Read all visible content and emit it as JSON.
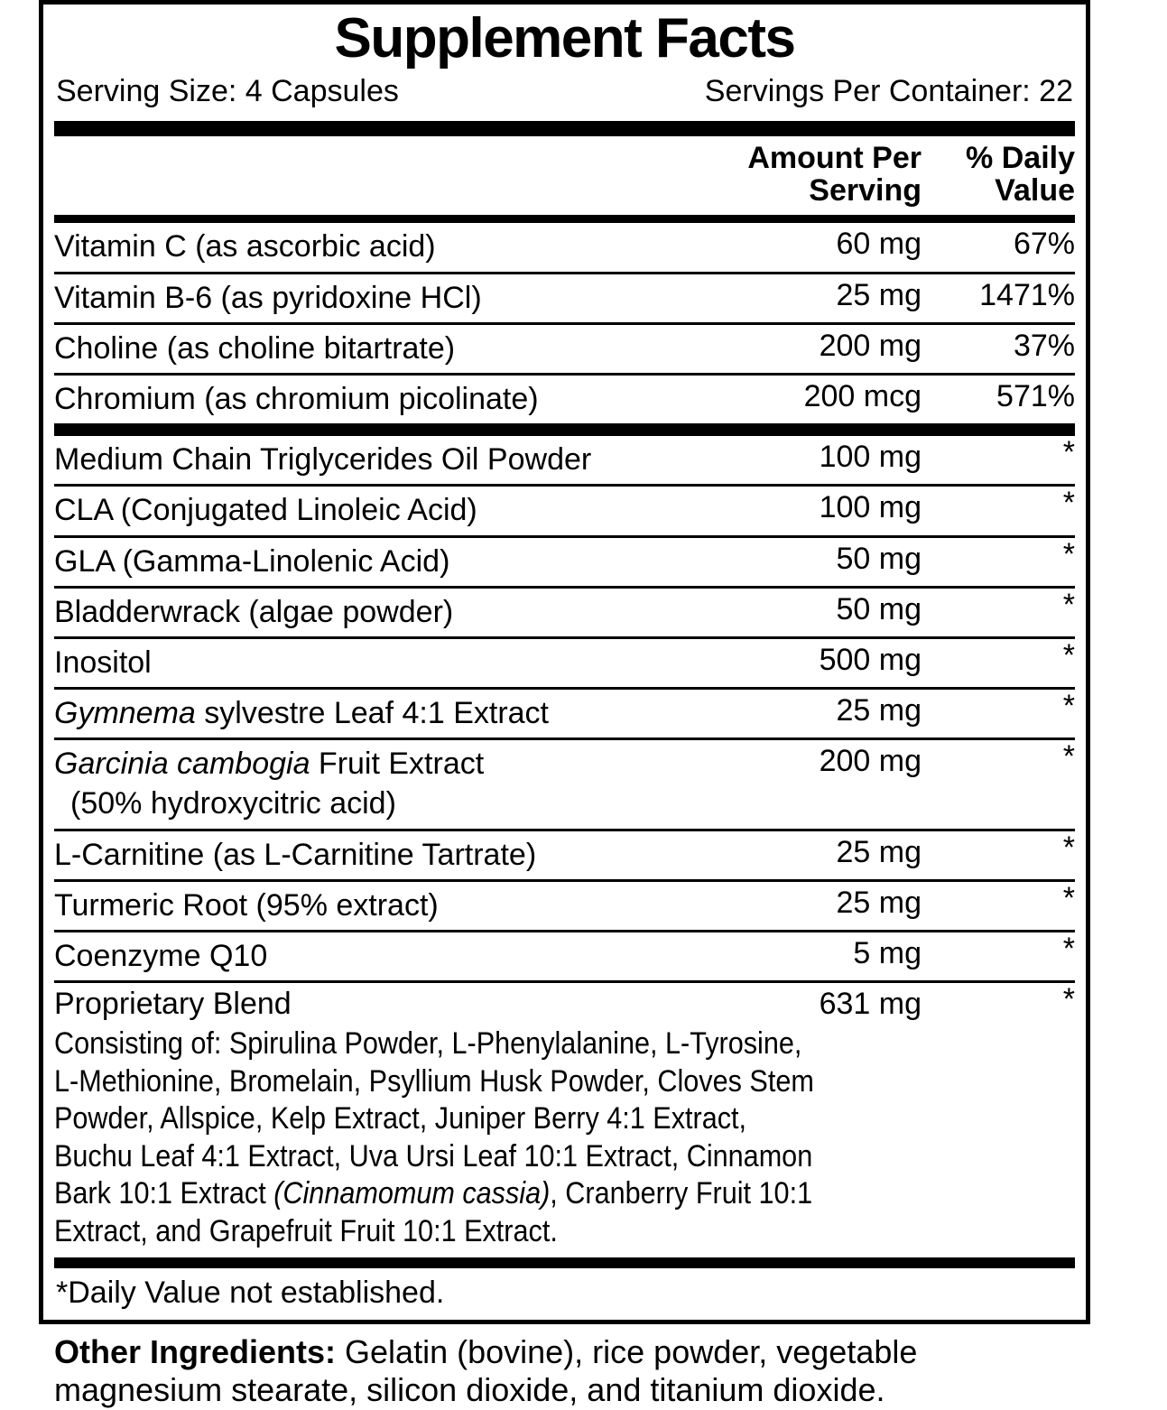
{
  "panel": {
    "title": "Supplement Facts",
    "serving_size": "Serving Size: 4 Capsules",
    "servings_per_container": "Servings Per Container: 22",
    "footnote": "*Daily Value not established."
  },
  "columns": {
    "amount_line1": "Amount Per",
    "amount_line2": "Serving",
    "dv_line1": "% Daily",
    "dv_line2": "Value"
  },
  "table": {
    "sections": [
      {
        "rows": [
          {
            "name_parts": [
              {
                "t": "Vitamin C (as ascorbic acid)"
              }
            ],
            "amount": "60 mg",
            "dv": "67%"
          },
          {
            "name_parts": [
              {
                "t": "Vitamin B-6 (as pyridoxine HCl)"
              }
            ],
            "amount": "25 mg",
            "dv": "1471%"
          },
          {
            "name_parts": [
              {
                "t": "Choline (as choline bitartrate)"
              }
            ],
            "amount": "200 mg",
            "dv": "37%"
          },
          {
            "name_parts": [
              {
                "t": "Chromium (as chromium picolinate)"
              }
            ],
            "amount": "200 mcg",
            "dv": "571%"
          }
        ]
      },
      {
        "rows": [
          {
            "name_parts": [
              {
                "t": "Medium Chain Triglycerides Oil Powder"
              }
            ],
            "amount": "100 mg",
            "dv": "*"
          },
          {
            "name_parts": [
              {
                "t": "CLA (Conjugated Linoleic Acid)"
              }
            ],
            "amount": "100 mg",
            "dv": "*"
          },
          {
            "name_parts": [
              {
                "t": "GLA (Gamma-Linolenic Acid)"
              }
            ],
            "amount": "50 mg",
            "dv": "*"
          },
          {
            "name_parts": [
              {
                "t": "Bladderwrack (algae powder)"
              }
            ],
            "amount": "50 mg",
            "dv": "*"
          },
          {
            "name_parts": [
              {
                "t": "Inositol"
              }
            ],
            "amount": "500 mg",
            "dv": "*"
          },
          {
            "name_parts": [
              {
                "t": "Gymnema",
                "i": true
              },
              {
                "t": " sylvestre Leaf 4:1 Extract"
              }
            ],
            "amount": "25 mg",
            "dv": "*"
          },
          {
            "name_parts": [
              {
                "t": "Garcinia cambogia",
                "i": true
              },
              {
                "t": " Fruit Extract"
              }
            ],
            "name_line2": "(50% hydroxycitric acid)",
            "amount": "200 mg",
            "dv": "*"
          },
          {
            "name_parts": [
              {
                "t": "L-Carnitine (as L-Carnitine Tartrate)"
              }
            ],
            "amount": "25 mg",
            "dv": "*"
          },
          {
            "name_parts": [
              {
                "t": "Turmeric Root (95% extract)"
              }
            ],
            "amount": "25 mg",
            "dv": "*"
          },
          {
            "name_parts": [
              {
                "t": "Coenzyme Q10"
              }
            ],
            "amount": "5 mg",
            "dv": "*"
          }
        ]
      }
    ]
  },
  "proprietary_blend": {
    "name": "Proprietary Blend",
    "amount": "631 mg",
    "dv": "*",
    "description_lines": [
      [
        {
          "t": "Consisting of: Spirulina Powder, L-Phenylalanine, L-Tyrosine,"
        }
      ],
      [
        {
          "t": "L-Methionine, Bromelain, Psyllium Husk Powder, Cloves Stem"
        }
      ],
      [
        {
          "t": "Powder, Allspice, Kelp Extract, Juniper Berry 4:1 Extract,"
        }
      ],
      [
        {
          "t": "Buchu Leaf 4:1 Extract, Uva Ursi Leaf 10:1 Extract, Cinnamon"
        }
      ],
      [
        {
          "t": "Bark 10:1 Extract "
        },
        {
          "t": "(Cinnamomum cassia)",
          "i": true
        },
        {
          "t": ", Cranberry Fruit 10:1"
        }
      ],
      [
        {
          "t": "Extract, and Grapefruit Fruit 10:1 Extract."
        }
      ]
    ]
  },
  "other_ingredients": {
    "label": "Other Ingredients:",
    "line1": " Gelatin (bovine), rice powder, vegetable",
    "line2": "magnesium stearate, silicon dioxide, and titanium dioxide."
  },
  "colors": {
    "ink": "#000000",
    "paper": "#ffffff"
  }
}
